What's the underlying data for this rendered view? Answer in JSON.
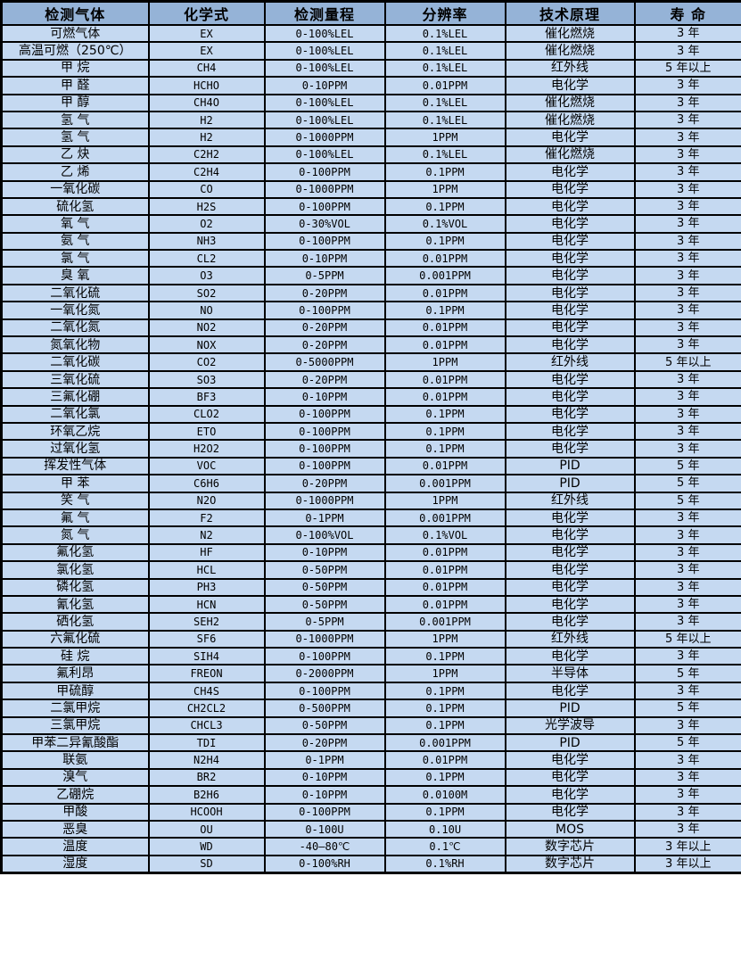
{
  "colors": {
    "header_bg": "#95b3d7",
    "row_bg": "#c5d9f1",
    "border": "#000000",
    "text": "#000000"
  },
  "table": {
    "columns": [
      "检测气体",
      "化学式",
      "检测量程",
      "分辨率",
      "技术原理",
      "寿 命"
    ],
    "rows": [
      [
        "可燃气体",
        "EX",
        "0-100%LEL",
        "0.1%LEL",
        "催化燃烧",
        "3 年"
      ],
      [
        "高温可燃（250℃）",
        "EX",
        "0-100%LEL",
        "0.1%LEL",
        "催化燃烧",
        "3 年"
      ],
      [
        "甲 烷",
        "CH4",
        "0-100%LEL",
        "0.1%LEL",
        "红外线",
        "5 年以上"
      ],
      [
        "甲 醛",
        "HCHO",
        "0-10PPM",
        "0.01PPM",
        "电化学",
        "3 年"
      ],
      [
        "甲 醇",
        "CH4O",
        "0-100%LEL",
        "0.1%LEL",
        "催化燃烧",
        "3 年"
      ],
      [
        "氢 气",
        "H2",
        "0-100%LEL",
        "0.1%LEL",
        "催化燃烧",
        "3 年"
      ],
      [
        "氢 气",
        "H2",
        "0-1000PPM",
        "1PPM",
        "电化学",
        "3 年"
      ],
      [
        "乙 炔",
        "C2H2",
        "0-100%LEL",
        "0.1%LEL",
        "催化燃烧",
        "3 年"
      ],
      [
        "乙 烯",
        "C2H4",
        "0-100PPM",
        "0.1PPM",
        "电化学",
        "3 年"
      ],
      [
        "一氧化碳",
        "CO",
        "0-1000PPM",
        "1PPM",
        "电化学",
        "3 年"
      ],
      [
        "硫化氢",
        "H2S",
        "0-100PPM",
        "0.1PPM",
        "电化学",
        "3 年"
      ],
      [
        "氧 气",
        "O2",
        "0-30%VOL",
        "0.1%VOL",
        "电化学",
        "3 年"
      ],
      [
        "氨 气",
        "NH3",
        "0-100PPM",
        "0.1PPM",
        "电化学",
        "3 年"
      ],
      [
        "氯 气",
        "CL2",
        "0-10PPM",
        "0.01PPM",
        "电化学",
        "3 年"
      ],
      [
        "臭 氧",
        "O3",
        "0-5PPM",
        "0.001PPM",
        "电化学",
        "3 年"
      ],
      [
        "二氧化硫",
        "SO2",
        "0-20PPM",
        "0.01PPM",
        "电化学",
        "3 年"
      ],
      [
        "一氧化氮",
        "NO",
        "0-100PPM",
        "0.1PPM",
        "电化学",
        "3 年"
      ],
      [
        "二氧化氮",
        "NO2",
        "0-20PPM",
        "0.01PPM",
        "电化学",
        "3 年"
      ],
      [
        "氮氧化物",
        "NOX",
        "0-20PPM",
        "0.01PPM",
        "电化学",
        "3 年"
      ],
      [
        "二氧化碳",
        "CO2",
        "0-5000PPM",
        "1PPM",
        "红外线",
        "5 年以上"
      ],
      [
        "三氧化硫",
        "SO3",
        "0-20PPM",
        "0.01PPM",
        "电化学",
        "3 年"
      ],
      [
        "三氟化硼",
        "BF3",
        "0-10PPM",
        "0.01PPM",
        "电化学",
        "3 年"
      ],
      [
        "二氧化氯",
        "CLO2",
        "0-100PPM",
        "0.1PPM",
        "电化学",
        "3 年"
      ],
      [
        "环氧乙烷",
        "ETO",
        "0-100PPM",
        "0.1PPM",
        "电化学",
        "3 年"
      ],
      [
        "过氧化氢",
        "H2O2",
        "0-100PPM",
        "0.1PPM",
        "电化学",
        "3 年"
      ],
      [
        "挥发性气体",
        "VOC",
        "0-100PPM",
        "0.01PPM",
        "PID",
        "5 年"
      ],
      [
        "甲 苯",
        "C6H6",
        "0-20PPM",
        "0.001PPM",
        "PID",
        "5 年"
      ],
      [
        "笑 气",
        "N2O",
        "0-1000PPM",
        "1PPM",
        "红外线",
        "5 年"
      ],
      [
        "氟 气",
        "F2",
        "0-1PPM",
        "0.001PPM",
        "电化学",
        "3 年"
      ],
      [
        "氮 气",
        "N2",
        "0-100%VOL",
        "0.1%VOL",
        "电化学",
        "3 年"
      ],
      [
        "氟化氢",
        "HF",
        "0-10PPM",
        "0.01PPM",
        "电化学",
        "3 年"
      ],
      [
        "氯化氢",
        "HCL",
        "0-50PPM",
        "0.01PPM",
        "电化学",
        "3 年"
      ],
      [
        "磷化氢",
        "PH3",
        "0-50PPM",
        "0.01PPM",
        "电化学",
        "3 年"
      ],
      [
        "氰化氢",
        "HCN",
        "0-50PPM",
        "0.01PPM",
        "电化学",
        "3 年"
      ],
      [
        "硒化氢",
        "SEH2",
        "0-5PPM",
        "0.001PPM",
        "电化学",
        "3 年"
      ],
      [
        "六氟化硫",
        "SF6",
        "0-1000PPM",
        "1PPM",
        "红外线",
        "5 年以上"
      ],
      [
        "硅 烷",
        "SIH4",
        "0-100PPM",
        "0.1PPM",
        "电化学",
        "3 年"
      ],
      [
        "氟利昂",
        "FREON",
        "0-2000PPM",
        "1PPM",
        "半导体",
        "5 年"
      ],
      [
        "甲硫醇",
        "CH4S",
        "0-100PPM",
        "0.1PPM",
        "电化学",
        "3 年"
      ],
      [
        "二氯甲烷",
        "CH2CL2",
        "0-500PPM",
        "0.1PPM",
        "PID",
        "5 年"
      ],
      [
        "三氯甲烷",
        "CHCL3",
        "0-50PPM",
        "0.1PPM",
        "光学波导",
        "3 年"
      ],
      [
        "甲苯二异氰酸酯",
        "TDI",
        "0-20PPM",
        "0.001PPM",
        "PID",
        "5 年"
      ],
      [
        "联氨",
        "N2H4",
        "0-1PPM",
        "0.01PPM",
        "电化学",
        "3 年"
      ],
      [
        "溴气",
        "BR2",
        "0-10PPM",
        "0.1PPM",
        "电化学",
        "3 年"
      ],
      [
        "乙硼烷",
        "B2H6",
        "0-10PPM",
        "0.0100M",
        "电化学",
        "3 年"
      ],
      [
        "甲酸",
        "HCOOH",
        "0-100PPM",
        "0.1PPM",
        "电化学",
        "3 年"
      ],
      [
        "恶臭",
        "OU",
        "0-100U",
        "0.10U",
        "MOS",
        "3 年"
      ],
      [
        "温度",
        "WD",
        "-40—80℃",
        "0.1℃",
        "数字芯片",
        "3 年以上"
      ],
      [
        "湿度",
        "SD",
        "0-100%RH",
        "0.1%RH",
        "数字芯片",
        "3 年以上"
      ]
    ]
  }
}
